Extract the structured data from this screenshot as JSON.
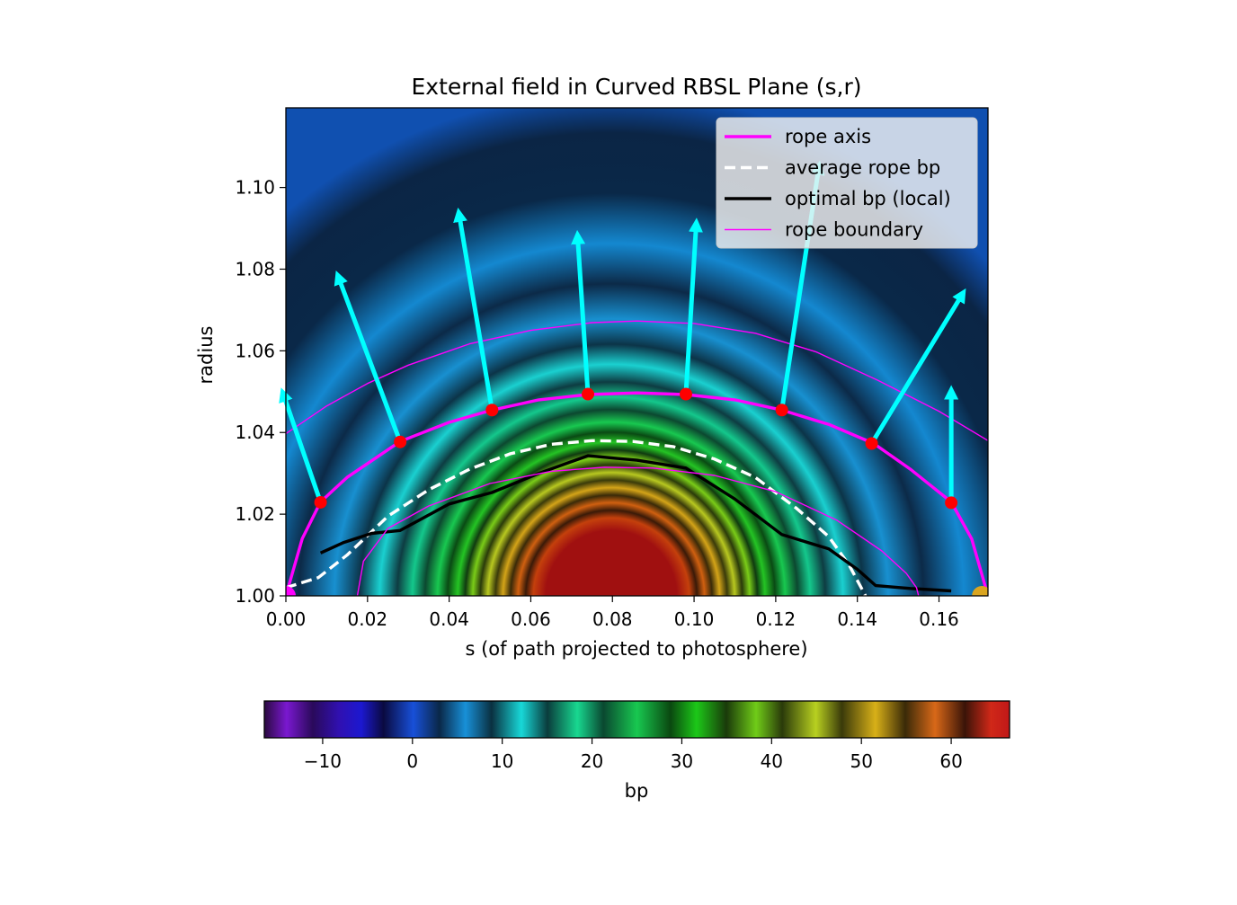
{
  "chart_data": {
    "type": "heatmap",
    "title": "External field in Curved RBSL Plane (s,r)",
    "xlabel": "s (of path projected to photosphere)",
    "ylabel": "radius",
    "xlim": [
      0.0,
      0.172
    ],
    "ylim": [
      1.0,
      1.1195
    ],
    "x_ticks": [
      "0.00",
      "0.02",
      "0.04",
      "0.06",
      "0.08",
      "0.10",
      "0.12",
      "0.14",
      "0.16"
    ],
    "y_ticks": [
      "1.00",
      "1.02",
      "1.04",
      "1.06",
      "1.08",
      "1.10"
    ],
    "grid": false,
    "legend_position": "top-right",
    "colorbar": {
      "label": "bp",
      "orientation": "horizontal",
      "range": [
        -16.5,
        66.5
      ],
      "ticks": [
        "−10",
        "0",
        "10",
        "20",
        "30",
        "40",
        "50",
        "60"
      ],
      "tick_values": [
        -10,
        0,
        10,
        20,
        30,
        40,
        50,
        60
      ]
    },
    "field_background": "bp shown as colored concentric arcs centered near s = 0.077, r = 1.0; red core (bp > 60) below r = 1.017",
    "series": [
      {
        "name": "rope axis",
        "style": "solid",
        "color": "#ff00ff",
        "width": "thick",
        "x": [
          0.0,
          0.004,
          0.0085,
          0.015,
          0.028,
          0.04,
          0.0505,
          0.062,
          0.074,
          0.086,
          0.098,
          0.11,
          0.1215,
          0.133,
          0.144,
          0.153,
          0.163,
          0.168,
          0.172
        ],
        "y": [
          1.0,
          1.014,
          1.023,
          1.029,
          1.0378,
          1.0425,
          1.0455,
          1.048,
          1.0493,
          1.0497,
          1.0493,
          1.048,
          1.0455,
          1.042,
          1.0373,
          1.031,
          1.023,
          1.014,
          1.0
        ]
      },
      {
        "name": "average rope bp",
        "style": "dashed",
        "color": "#ffffff",
        "width": "thick",
        "x": [
          0.0,
          0.008,
          0.015,
          0.025,
          0.035,
          0.045,
          0.055,
          0.065,
          0.075,
          0.085,
          0.095,
          0.105,
          0.115,
          0.125,
          0.133,
          0.138,
          0.142
        ],
        "y": [
          1.002,
          1.0045,
          1.01,
          1.0195,
          1.026,
          1.031,
          1.0348,
          1.0371,
          1.038,
          1.0378,
          1.0365,
          1.0335,
          1.029,
          1.0215,
          1.0145,
          1.0075,
          1.0
        ]
      },
      {
        "name": "optimal bp (local)",
        "style": "solid",
        "color": "#000000",
        "width": "thick",
        "x": [
          0.0085,
          0.014,
          0.021,
          0.028,
          0.04,
          0.0505,
          0.062,
          0.074,
          0.086,
          0.098,
          0.11,
          0.1215,
          0.133,
          0.14,
          0.1445,
          0.153,
          0.163
        ],
        "y": [
          1.0105,
          1.013,
          1.0153,
          1.016,
          1.0225,
          1.0253,
          1.03,
          1.0343,
          1.0332,
          1.0313,
          1.0237,
          1.015,
          1.0115,
          1.0065,
          1.0025,
          1.0018,
          1.0012
        ]
      },
      {
        "name": "rope boundary",
        "style": "solid",
        "color": "#ff00ff",
        "width": "thin",
        "x": [
          0.0,
          0.01,
          0.02,
          0.03,
          0.045,
          0.06,
          0.075,
          0.086,
          0.1,
          0.115,
          0.13,
          0.145,
          0.16,
          0.172
        ],
        "y": [
          1.0397,
          1.0465,
          1.052,
          1.0565,
          1.0617,
          1.065,
          1.0669,
          1.0673,
          1.0667,
          1.0643,
          1.0597,
          1.0528,
          1.0452,
          1.038
        ]
      },
      {
        "name": "",
        "style": "solid",
        "color": "#ff00ff",
        "width": "thin",
        "x": [
          0.0175,
          0.019,
          0.025,
          0.035,
          0.05,
          0.065,
          0.078,
          0.09,
          0.105,
          0.12,
          0.135,
          0.146,
          0.152,
          0.1545,
          0.155
        ],
        "y": [
          1.0,
          1.0085,
          1.0165,
          1.022,
          1.0275,
          1.0305,
          1.0315,
          1.0313,
          1.0295,
          1.0255,
          1.0185,
          1.011,
          1.0055,
          1.002,
          1.0
        ]
      }
    ],
    "points": {
      "color": "#ff0000",
      "x": [
        0.0085,
        0.028,
        0.0505,
        0.074,
        0.098,
        0.1215,
        0.1435,
        0.163
      ],
      "y": [
        1.0229,
        1.0377,
        1.0455,
        1.0494,
        1.0494,
        1.0455,
        1.0373,
        1.0228
      ]
    },
    "footpoints": [
      {
        "x": 0.0,
        "y": 1.0,
        "color": "#ff00ff"
      },
      {
        "x": 0.1705,
        "y": 1.0,
        "color": "#daa520"
      }
    ],
    "arrows": {
      "color": "#00ffff",
      "items": [
        {
          "x0": 0.0085,
          "y0": 1.0229,
          "x1": -0.0005,
          "y1": 1.049
        },
        {
          "x0": 0.028,
          "y0": 1.0377,
          "x1": 0.013,
          "y1": 1.0777
        },
        {
          "x0": 0.0505,
          "y0": 1.0455,
          "x1": 0.0425,
          "y1": 1.093
        },
        {
          "x0": 0.074,
          "y0": 1.0494,
          "x1": 0.0715,
          "y1": 1.0875
        },
        {
          "x0": 0.098,
          "y0": 1.0494,
          "x1": 0.1005,
          "y1": 1.0905
        },
        {
          "x0": 0.1215,
          "y0": 1.0455,
          "x1": 0.1305,
          "y1": 1.1045
        },
        {
          "x0": 0.1435,
          "y0": 1.0373,
          "x1": 0.1655,
          "y1": 1.0735
        },
        {
          "x0": 0.163,
          "y0": 1.0228,
          "x1": 0.163,
          "y1": 1.0495
        }
      ]
    }
  }
}
